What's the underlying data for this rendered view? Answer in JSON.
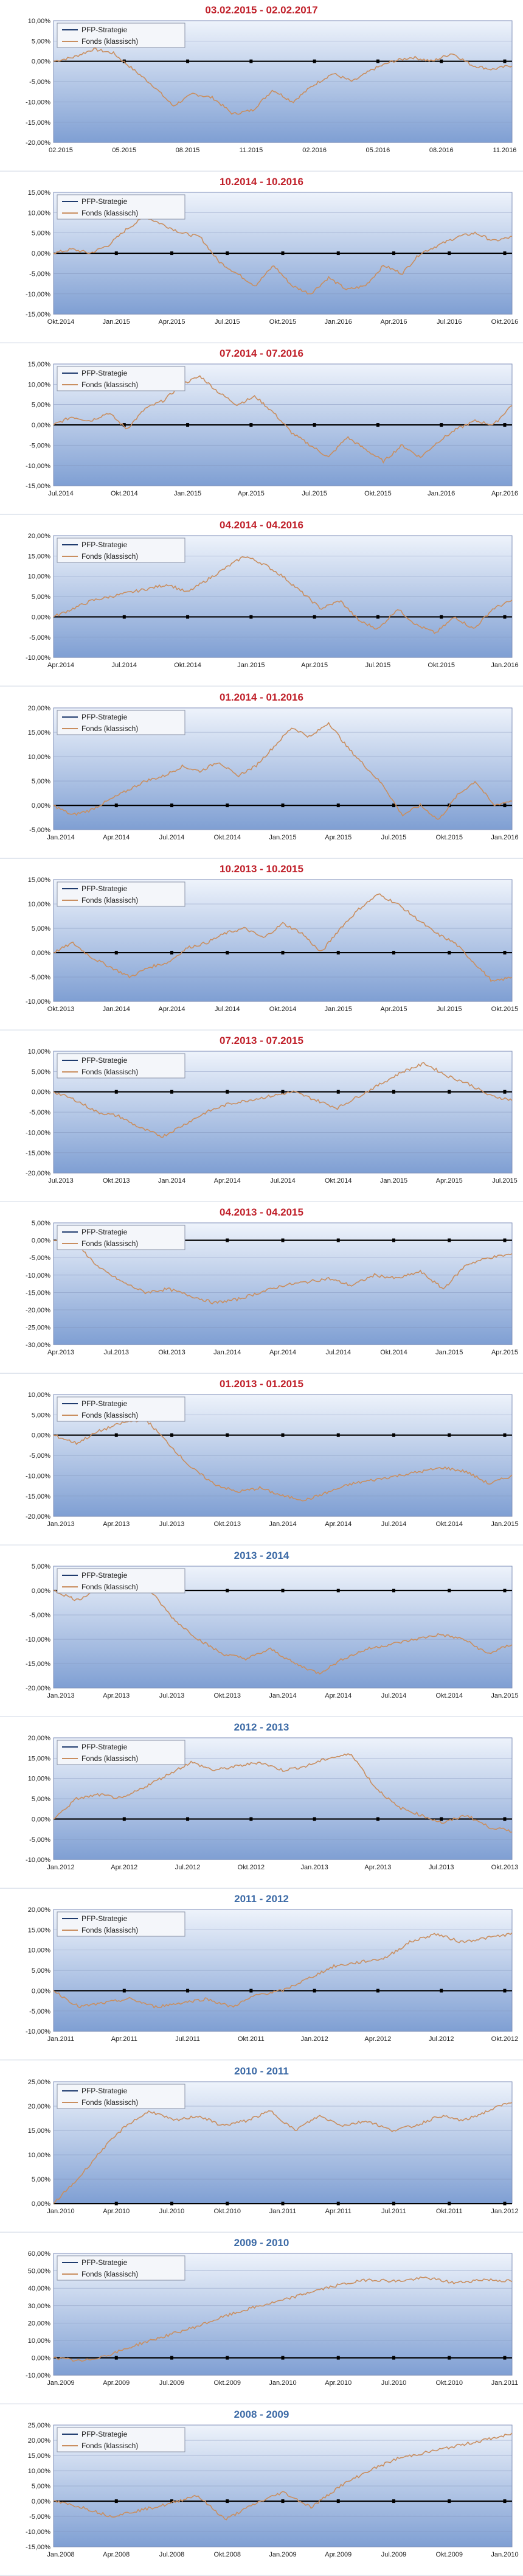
{
  "legend": {
    "series_a": "PFP-Strategie",
    "series_b": "Fonds (klassisch)"
  },
  "colors": {
    "series_a": "#1f3b6e",
    "series_b": "#c98e5f",
    "title_red": "#c0202a",
    "title_blue": "#3c6aa6",
    "plot_top": "#eef3fb",
    "plot_bottom": "#7f9fd3",
    "grid": "#7f8fb8"
  },
  "chart_data": [
    {
      "type": "line",
      "title": "03.02.2015 - 02.02.2017",
      "title_color": "red",
      "yticks": [
        "10,00%",
        "5,00%",
        "0,00%",
        "-5,00%",
        "-10,00%",
        "-15,00%",
        "-20,00%"
      ],
      "ylim": [
        -20,
        10
      ],
      "xticks": [
        "02.2015",
        "05.2015",
        "08.2015",
        "11.2015",
        "02.2016",
        "05.2016",
        "08.2016",
        "11.2016"
      ],
      "series": [
        {
          "name": "PFP-Strategie",
          "values": [
            0,
            0
          ]
        },
        {
          "name": "Fonds (klassisch)",
          "values": [
            0,
            1,
            3,
            2,
            -2,
            -6,
            -11,
            -8,
            -9,
            -13,
            -12,
            -7,
            -10,
            -6,
            -3,
            -5,
            -2,
            0,
            1,
            0,
            2,
            -1,
            -2,
            -1
          ]
        }
      ]
    },
    {
      "type": "line",
      "title": "10.2014 - 10.2016",
      "title_color": "red",
      "yticks": [
        "15,00%",
        "10,00%",
        "5,00%",
        "0,00%",
        "-5,00%",
        "-10,00%",
        "-15,00%"
      ],
      "ylim": [
        -15,
        15
      ],
      "xticks": [
        "Okt.2014",
        "Jan.2015",
        "Apr.2015",
        "Jul.2015",
        "Okt.2015",
        "Jan.2016",
        "Apr.2016",
        "Jul.2016",
        "Okt.2016"
      ],
      "series": [
        {
          "name": "PFP-Strategie",
          "values": [
            0,
            0
          ]
        },
        {
          "name": "Fonds (klassisch)",
          "values": [
            0,
            1,
            0,
            2,
            6,
            9,
            7,
            5,
            4,
            -2,
            -5,
            -8,
            -3,
            -8,
            -10,
            -6,
            -9,
            -8,
            -3,
            -5,
            0,
            2,
            4,
            5,
            3,
            4
          ]
        }
      ]
    },
    {
      "type": "line",
      "title": "07.2014 - 07.2016",
      "title_color": "red",
      "yticks": [
        "15,00%",
        "10,00%",
        "5,00%",
        "0,00%",
        "-5,00%",
        "-10,00%",
        "-15,00%"
      ],
      "ylim": [
        -15,
        15
      ],
      "xticks": [
        "Jul.2014",
        "Okt.2014",
        "Jan.2015",
        "Apr.2015",
        "Jul.2015",
        "Okt.2015",
        "Jan.2016",
        "Apr.2016"
      ],
      "series": [
        {
          "name": "PFP-Strategie",
          "values": [
            0,
            0
          ]
        },
        {
          "name": "Fonds (klassisch)",
          "values": [
            0,
            2,
            1,
            3,
            -1,
            4,
            6,
            10,
            12,
            8,
            5,
            7,
            3,
            -2,
            -5,
            -8,
            -3,
            -6,
            -9,
            -5,
            -8,
            -4,
            -1,
            1,
            0,
            5
          ]
        }
      ]
    },
    {
      "type": "line",
      "title": "04.2014 - 04.2016",
      "title_color": "red",
      "yticks": [
        "20,00%",
        "15,00%",
        "10,00%",
        "5,00%",
        "0,00%",
        "-5,00%",
        "-10,00%"
      ],
      "ylim": [
        -10,
        20
      ],
      "xticks": [
        "Apr.2014",
        "Jul.2014",
        "Okt.2014",
        "Jan.2015",
        "Apr.2015",
        "Jul.2015",
        "Okt.2015",
        "Jan.2016"
      ],
      "series": [
        {
          "name": "PFP-Strategie",
          "values": [
            0,
            0
          ]
        },
        {
          "name": "Fonds (klassisch)",
          "values": [
            0,
            2,
            4,
            5,
            6,
            7,
            8,
            6,
            9,
            12,
            15,
            13,
            10,
            6,
            2,
            4,
            -1,
            -3,
            2,
            -2,
            -4,
            0,
            -3,
            2,
            4
          ]
        }
      ]
    },
    {
      "type": "line",
      "title": "01.2014 - 01.2016",
      "title_color": "red",
      "yticks": [
        "20,00%",
        "15,00%",
        "10,00%",
        "5,00%",
        "0,00%",
        "-5,00%"
      ],
      "ylim": [
        -5,
        20
      ],
      "xticks": [
        "Jan.2014",
        "Apr.2014",
        "Jul.2014",
        "Okt.2014",
        "Jan.2015",
        "Apr.2015",
        "Jul.2015",
        "Okt.2015",
        "Jan.2016"
      ],
      "series": [
        {
          "name": "PFP-Strategie",
          "values": [
            0,
            0
          ]
        },
        {
          "name": "Fonds (klassisch)",
          "values": [
            0,
            -2,
            -1,
            1,
            3,
            5,
            6,
            8,
            7,
            9,
            6,
            8,
            12,
            16,
            14,
            17,
            12,
            8,
            4,
            -2,
            0,
            -3,
            2,
            5,
            0,
            1
          ]
        }
      ]
    },
    {
      "type": "line",
      "title": "10.2013 - 10.2015",
      "title_color": "red",
      "yticks": [
        "15,00%",
        "10,00%",
        "5,00%",
        "0,00%",
        "-5,00%",
        "-10,00%"
      ],
      "ylim": [
        -10,
        15
      ],
      "xticks": [
        "Okt.2013",
        "Jan.2014",
        "Apr.2014",
        "Jul.2014",
        "Okt.2014",
        "Jan.2015",
        "Apr.2015",
        "Jul.2015",
        "Okt.2015"
      ],
      "series": [
        {
          "name": "PFP-Strategie",
          "values": [
            0,
            0
          ]
        },
        {
          "name": "Fonds (klassisch)",
          "values": [
            0,
            2,
            -1,
            -3,
            -5,
            -3,
            -2,
            1,
            2,
            4,
            5,
            3,
            6,
            4,
            0,
            5,
            9,
            12,
            10,
            7,
            4,
            2,
            -2,
            -6,
            -5
          ]
        }
      ]
    },
    {
      "type": "line",
      "title": "07.2013 - 07.2015",
      "title_color": "red",
      "yticks": [
        "10,00%",
        "5,00%",
        "0,00%",
        "-5,00%",
        "-10,00%",
        "-15,00%",
        "-20,00%"
      ],
      "ylim": [
        -20,
        10
      ],
      "xticks": [
        "Jul.2013",
        "Okt.2013",
        "Jan.2014",
        "Apr.2014",
        "Jul.2014",
        "Okt.2014",
        "Jan.2015",
        "Apr.2015",
        "Jul.2015"
      ],
      "series": [
        {
          "name": "PFP-Strategie",
          "values": [
            0,
            0
          ]
        },
        {
          "name": "Fonds (klassisch)",
          "values": [
            0,
            -2,
            -5,
            -6,
            -9,
            -11,
            -8,
            -5,
            -3,
            -2,
            -1,
            0,
            -2,
            -4,
            -1,
            2,
            5,
            7,
            4,
            2,
            -1,
            -2
          ]
        }
      ]
    },
    {
      "type": "line",
      "title": "04.2013 - 04.2015",
      "title_color": "red",
      "yticks": [
        "5,00%",
        "0,00%",
        "-5,00%",
        "-10,00%",
        "-15,00%",
        "-20,00%",
        "-25,00%",
        "-30,00%"
      ],
      "ylim": [
        -30,
        5
      ],
      "xticks": [
        "Apr.2013",
        "Jul.2013",
        "Okt.2013",
        "Jan.2014",
        "Apr.2014",
        "Jul.2014",
        "Okt.2014",
        "Jan.2015",
        "Apr.2015"
      ],
      "series": [
        {
          "name": "PFP-Strategie",
          "values": [
            0,
            0
          ]
        },
        {
          "name": "Fonds (klassisch)",
          "values": [
            0,
            -1,
            -8,
            -12,
            -15,
            -14,
            -16,
            -18,
            -17,
            -15,
            -13,
            -12,
            -11,
            -13,
            -10,
            -11,
            -9,
            -14,
            -7,
            -5,
            -4
          ]
        }
      ]
    },
    {
      "type": "line",
      "title": "01.2013 - 01.2015",
      "title_color": "red",
      "yticks": [
        "10,00%",
        "5,00%",
        "0,00%",
        "-5,00%",
        "-10,00%",
        "-15,00%",
        "-20,00%"
      ],
      "ylim": [
        -20,
        10
      ],
      "xticks": [
        "Jan.2013",
        "Apr.2013",
        "Jul.2013",
        "Okt.2013",
        "Jan.2014",
        "Apr.2014",
        "Jul.2014",
        "Okt.2014",
        "Jan.2015"
      ],
      "series": [
        {
          "name": "PFP-Strategie",
          "values": [
            0,
            0
          ]
        },
        {
          "name": "Fonds (klassisch)",
          "values": [
            0,
            -2,
            1,
            3,
            4,
            -2,
            -8,
            -12,
            -14,
            -13,
            -15,
            -16,
            -14,
            -12,
            -11,
            -10,
            -9,
            -8,
            -9,
            -12,
            -10
          ]
        }
      ]
    },
    {
      "type": "line",
      "title": "2013 - 2014",
      "title_color": "blue",
      "yticks": [
        "5,00%",
        "0,00%",
        "-5,00%",
        "-10,00%",
        "-15,00%",
        "-20,00%"
      ],
      "ylim": [
        -20,
        5
      ],
      "xticks": [
        "Jan.2013",
        "Apr.2013",
        "Jul.2013",
        "Okt.2013",
        "Jan.2014",
        "Apr.2014",
        "Jul.2014",
        "Okt.2014",
        "Jan.2015"
      ],
      "series": [
        {
          "name": "PFP-Strategie",
          "values": [
            0,
            0
          ]
        },
        {
          "name": "Fonds (klassisch)",
          "values": [
            0,
            -2,
            1,
            2,
            0,
            -6,
            -10,
            -13,
            -14,
            -12,
            -15,
            -17,
            -14,
            -12,
            -11,
            -10,
            -9,
            -10,
            -13,
            -11
          ]
        }
      ]
    },
    {
      "type": "line",
      "title": "2012 - 2013",
      "title_color": "blue",
      "yticks": [
        "20,00%",
        "15,00%",
        "10,00%",
        "5,00%",
        "0,00%",
        "-5,00%",
        "-10,00%"
      ],
      "ylim": [
        -10,
        20
      ],
      "xticks": [
        "Jan.2012",
        "Apr.2012",
        "Jul.2012",
        "Okt.2012",
        "Jan.2013",
        "Apr.2013",
        "Jul.2013",
        "Okt.2013"
      ],
      "series": [
        {
          "name": "PFP-Strategie",
          "values": [
            0,
            0
          ]
        },
        {
          "name": "Fonds (klassisch)",
          "values": [
            0,
            5,
            6,
            5,
            8,
            11,
            14,
            12,
            13,
            14,
            12,
            13,
            15,
            16,
            8,
            3,
            1,
            -1,
            1,
            -2,
            -3
          ]
        }
      ]
    },
    {
      "type": "line",
      "title": "2011 - 2012",
      "title_color": "blue",
      "yticks": [
        "20,00%",
        "15,00%",
        "10,00%",
        "5,00%",
        "0,00%",
        "-5,00%",
        "-10,00%"
      ],
      "ylim": [
        -10,
        20
      ],
      "xticks": [
        "Jan.2011",
        "Apr.2011",
        "Jul.2011",
        "Okt.2011",
        "Jan.2012",
        "Apr.2012",
        "Jul.2012",
        "Okt.2012"
      ],
      "series": [
        {
          "name": "PFP-Strategie",
          "values": [
            0,
            0
          ]
        },
        {
          "name": "Fonds (klassisch)",
          "values": [
            0,
            -4,
            -3,
            -2,
            -4,
            -3,
            -2,
            -4,
            -1,
            0,
            3,
            6,
            7,
            8,
            12,
            14,
            12,
            13,
            14
          ]
        }
      ]
    },
    {
      "type": "line",
      "title": "2010 - 2011",
      "title_color": "blue",
      "yticks": [
        "25,00%",
        "20,00%",
        "15,00%",
        "10,00%",
        "5,00%",
        "0,00%"
      ],
      "ylim": [
        0,
        25
      ],
      "xticks": [
        "Jan.2010",
        "Apr.2010",
        "Jul.2010",
        "Okt.2010",
        "Jan.2011",
        "Apr.2011",
        "Jul.2011",
        "Okt.2011",
        "Jan.2012"
      ],
      "series": [
        {
          "name": "PFP-Strategie",
          "values": [
            0,
            0
          ]
        },
        {
          "name": "Fonds (klassisch)",
          "values": [
            0,
            5,
            11,
            16,
            19,
            17,
            18,
            16,
            17,
            19,
            15,
            18,
            16,
            17,
            15,
            16,
            18,
            17,
            19,
            21
          ]
        }
      ]
    },
    {
      "type": "line",
      "title": "2009 - 2010",
      "title_color": "blue",
      "yticks": [
        "60,00%",
        "50,00%",
        "40,00%",
        "30,00%",
        "20,00%",
        "10,00%",
        "0,00%",
        "-10,00%"
      ],
      "ylim": [
        -10,
        60
      ],
      "xticks": [
        "Jan.2009",
        "Apr.2009",
        "Jul.2009",
        "Okt.2009",
        "Jan.2010",
        "Apr.2010",
        "Jul.2010",
        "Okt.2010",
        "Jan.2011"
      ],
      "series": [
        {
          "name": "PFP-Strategie",
          "values": [
            0,
            0
          ]
        },
        {
          "name": "Fonds (klassisch)",
          "values": [
            0,
            -2,
            2,
            8,
            13,
            18,
            24,
            29,
            33,
            38,
            42,
            45,
            44,
            46,
            43,
            45,
            44
          ]
        }
      ]
    },
    {
      "type": "line",
      "title": "2008 - 2009",
      "title_color": "blue",
      "yticks": [
        "25,00%",
        "20,00%",
        "15,00%",
        "10,00%",
        "5,00%",
        "0,00%",
        "-5,00%",
        "-10,00%",
        "-15,00%"
      ],
      "ylim": [
        -15,
        25
      ],
      "xticks": [
        "Jan.2008",
        "Apr.2008",
        "Jul.2008",
        "Okt.2008",
        "Jan.2009",
        "Apr.2009",
        "Jul.2009",
        "Okt.2009",
        "Jan.2010"
      ],
      "series": [
        {
          "name": "PFP-Strategie",
          "values": [
            0,
            0
          ]
        },
        {
          "name": "Fonds (klassisch)",
          "values": [
            0,
            -2,
            -5,
            -3,
            -1,
            2,
            -6,
            -1,
            3,
            -2,
            5,
            10,
            14,
            16,
            18,
            20,
            22
          ]
        }
      ]
    }
  ]
}
